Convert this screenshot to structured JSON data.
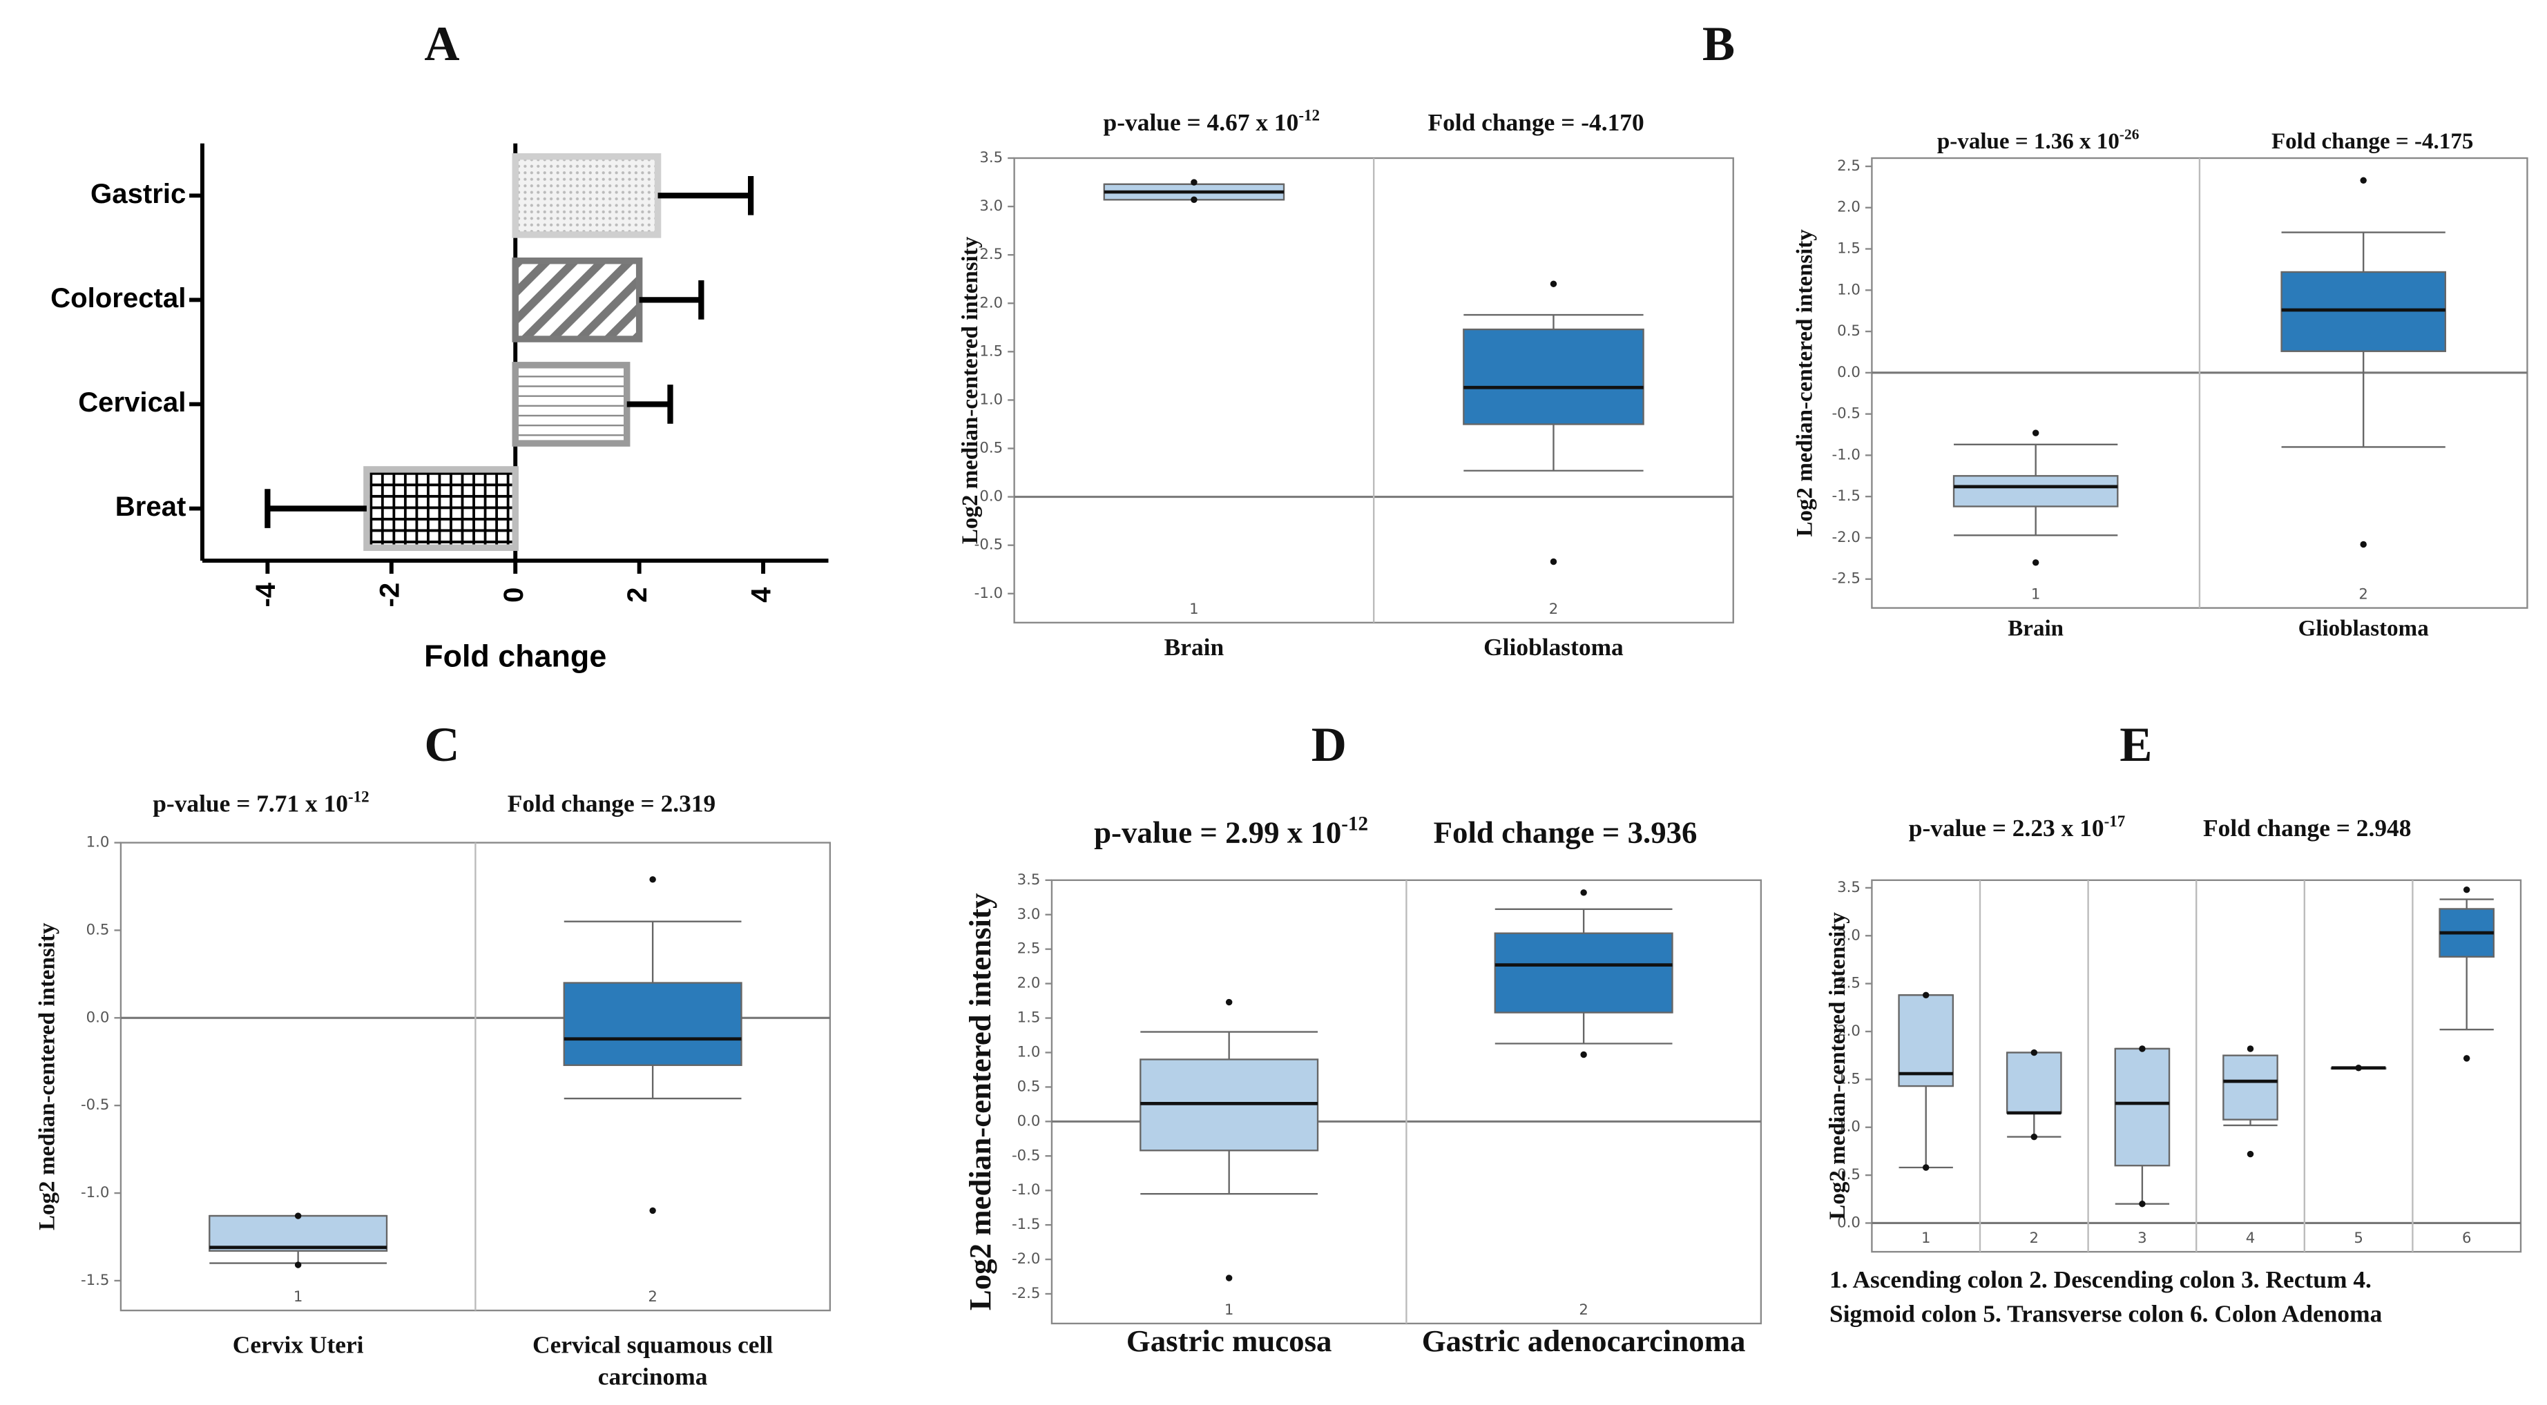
{
  "chart_data": [
    {
      "type": "hbar",
      "panel": "A",
      "categories": [
        "Gastric",
        "Colorectal",
        "Cervical",
        "Breat"
      ],
      "values": [
        2.3,
        2.0,
        1.8,
        -2.4
      ],
      "errors": [
        1.5,
        1.0,
        0.7,
        1.6
      ],
      "colors": [
        "#cfcfcf",
        "#7a7a7a",
        "#9a9a9a",
        "#bdbdbd"
      ],
      "patterns": [
        "dots",
        "diagonal",
        "horizontal",
        "grid"
      ],
      "xlim": [
        -5,
        5
      ],
      "xticks": [
        -4,
        -2,
        0,
        2,
        4
      ],
      "xlabel": "Fold change"
    },
    {
      "type": "box",
      "panel": "B",
      "p_value": "p-value = 4.67 x 10",
      "p_exp": "-12",
      "fold_change": "Fold change = -4.170",
      "ylabel": "Log2 median-centered intensity",
      "ylim": [
        -1.3,
        3.5
      ],
      "yticks": [
        {
          "value": -1,
          "label": "-1.0"
        },
        -0.5,
        {
          "value": 0,
          "label": "0.0"
        },
        0.5,
        {
          "value": 1,
          "label": "1.0"
        },
        1.5,
        {
          "value": 2,
          "label": "2.0"
        },
        2.5,
        {
          "value": 3,
          "label": "3.0"
        },
        3.5
      ],
      "zero_line": true,
      "series": [
        {
          "name": "Brain",
          "tick": "1",
          "color": "#b5d0e8",
          "min": 3.07,
          "q1": 3.07,
          "median": 3.15,
          "q3": 3.23,
          "max": 3.23,
          "outliers": [
            3.25,
            3.07
          ]
        },
        {
          "name": "Glioblastoma",
          "tick": "2",
          "color": "#2b7bba",
          "min": 0.27,
          "q1": 0.75,
          "median": 1.13,
          "q3": 1.73,
          "max": 1.88,
          "outliers": [
            2.2,
            -0.67
          ]
        }
      ]
    },
    {
      "type": "box",
      "p_value": "p-value = 1.36 x 10",
      "p_exp": "-26",
      "fold_change": "Fold change = -4.175",
      "ylabel": "Log2 median-centered intensity",
      "ylim": [
        -2.85,
        2.6
      ],
      "yticks": [
        -2.5,
        {
          "value": -2,
          "label": "-2.0"
        },
        -1.5,
        {
          "value": -1,
          "label": "-1.0"
        },
        -0.5,
        {
          "value": 0,
          "label": "0.0"
        },
        0.5,
        {
          "value": 1,
          "label": "1.0"
        },
        1.5,
        {
          "value": 2,
          "label": "2.0"
        },
        2.5
      ],
      "zero_line": true,
      "series": [
        {
          "name": "Brain",
          "tick": "1",
          "color": "#b5d0e8",
          "min": -1.97,
          "q1": -1.62,
          "median": -1.38,
          "q3": -1.25,
          "max": -0.87,
          "outliers": [
            -0.73,
            -2.3
          ]
        },
        {
          "name": "Glioblastoma",
          "tick": "2",
          "color": "#2b7bba",
          "min": -0.9,
          "q1": 0.26,
          "median": 0.76,
          "q3": 1.22,
          "max": 1.7,
          "outliers": [
            2.33,
            -2.08
          ]
        }
      ]
    },
    {
      "type": "box",
      "panel": "C",
      "p_value": "p-value = 7.71 x 10",
      "p_exp": "-12",
      "fold_change": "Fold change = 2.319",
      "ylabel": "Log2 median-centered intensity",
      "ylim": [
        -1.67,
        1.0
      ],
      "yticks": [
        -1.5,
        {
          "value": -1,
          "label": "-1.0"
        },
        -0.5,
        {
          "value": 0,
          "label": "0.0"
        },
        0.5,
        {
          "value": 1,
          "label": "1.0"
        }
      ],
      "zero_line": true,
      "series": [
        {
          "name": "Cervix Uteri",
          "tick": "1",
          "color": "#b5d0e8",
          "min": -1.4,
          "q1": -1.33,
          "median": -1.31,
          "q3": -1.13,
          "max": -1.13,
          "outliers": [
            -1.13,
            -1.41
          ]
        },
        {
          "name": "Cervical squamous cell carcinoma",
          "tick": "2",
          "color": "#2b7bba",
          "min": -0.46,
          "q1": -0.27,
          "median": -0.12,
          "q3": 0.2,
          "max": 0.55,
          "outliers": [
            0.79,
            -1.1
          ]
        }
      ]
    },
    {
      "type": "box",
      "panel": "D",
      "p_value": "p-value = 2.99 x 10",
      "p_exp": "-12",
      "fold_change": "Fold change = 3.936",
      "ylabel": "Log2 median-centered intensity",
      "ylim": [
        -2.93,
        3.5
      ],
      "yticks": [
        -2.5,
        {
          "value": -2,
          "label": "-2.0"
        },
        -1.5,
        {
          "value": -1,
          "label": "-1.0"
        },
        -0.5,
        {
          "value": 0,
          "label": "0.0"
        },
        0.5,
        {
          "value": 1,
          "label": "1.0"
        },
        1.5,
        {
          "value": 2,
          "label": "2.0"
        },
        2.5,
        {
          "value": 3,
          "label": "3.0"
        },
        3.5
      ],
      "zero_line": true,
      "series": [
        {
          "name": "Gastric mucosa",
          "tick": "1",
          "color": "#b5d0e8",
          "min": -1.05,
          "q1": -0.42,
          "median": 0.26,
          "q3": 0.9,
          "max": 1.3,
          "outliers": [
            1.73,
            -2.27
          ]
        },
        {
          "name": "Gastric adenocarcinoma",
          "tick": "2",
          "color": "#2b7bba",
          "min": 1.13,
          "q1": 1.58,
          "median": 2.27,
          "q3": 2.73,
          "max": 3.08,
          "outliers": [
            3.32,
            0.97
          ]
        }
      ]
    },
    {
      "type": "box",
      "panel": "E",
      "p_value": "p-value = 2.23 x 10",
      "p_exp": "-17",
      "fold_change": "Fold change = 2.948",
      "ylabel": "Log2 median-centered intensity",
      "note": "1. Ascending colon 2. Descending colon 3. Rectum 4. Sigmoid colon 5. Transverse colon 6. Colon Adenoma",
      "ylim": [
        -0.3,
        3.58
      ],
      "yticks": [
        {
          "value": 0,
          "label": "0.0"
        },
        0.5,
        {
          "value": 1,
          "label": "1.0"
        },
        1.5,
        {
          "value": 2,
          "label": "2.0"
        },
        2.5,
        {
          "value": 3,
          "label": "3.0"
        },
        3.5
      ],
      "zero_line": true,
      "series": [
        {
          "tick": "1",
          "color": "#b5d0e8",
          "min": 0.58,
          "q1": 1.43,
          "median": 1.56,
          "q3": 2.38,
          "max": 2.38,
          "outliers": [
            2.38,
            0.58
          ]
        },
        {
          "tick": "2",
          "color": "#b5d0e8",
          "min": 0.9,
          "q1": 1.15,
          "median": 1.15,
          "q3": 1.78,
          "max": 1.78,
          "outliers": [
            1.78,
            0.9
          ]
        },
        {
          "tick": "3",
          "color": "#b5d0e8",
          "min": 0.2,
          "q1": 0.6,
          "median": 1.25,
          "q3": 1.82,
          "max": 1.82,
          "outliers": [
            1.82,
            0.2
          ]
        },
        {
          "tick": "4",
          "color": "#b5d0e8",
          "min": 1.02,
          "q1": 1.08,
          "median": 1.48,
          "q3": 1.75,
          "max": 1.75,
          "outliers": [
            1.82,
            0.72
          ]
        },
        {
          "tick": "5",
          "color": "#b5d0e8",
          "min": 1.62,
          "q1": 1.62,
          "median": 1.62,
          "q3": 1.62,
          "max": 1.62,
          "outliers": [
            1.62
          ]
        },
        {
          "tick": "6",
          "color": "#2b7bba",
          "min": 2.02,
          "q1": 2.78,
          "median": 3.03,
          "q3": 3.28,
          "max": 3.38,
          "outliers": [
            3.48,
            1.72
          ]
        }
      ]
    }
  ]
}
